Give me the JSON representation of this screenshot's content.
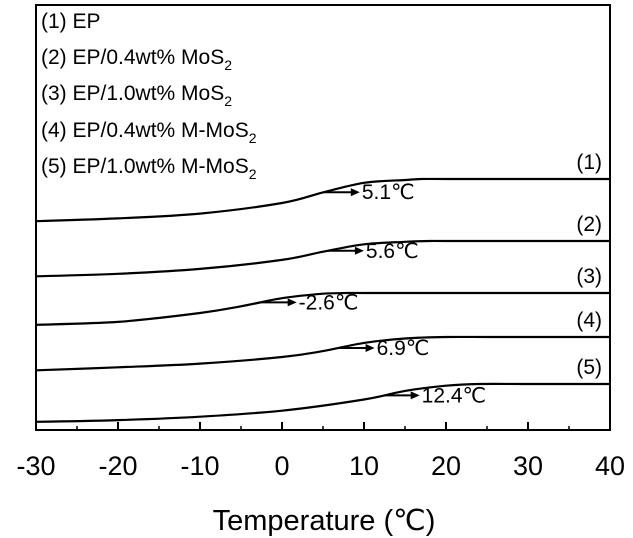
{
  "chart_data": {
    "type": "line",
    "title": "",
    "xlabel": "Temperature (℃)",
    "ylabel": "",
    "xlim": [
      -30,
      40
    ],
    "x_ticks": [
      "-30",
      "-20",
      "-10",
      "0",
      "10",
      "20",
      "30",
      "40"
    ],
    "y_ticks_shown": false,
    "grid": false,
    "legend_placement": "top-left",
    "legend": [
      {
        "main": "(1) EP",
        "sub": ""
      },
      {
        "main": "(2) EP/0.4wt% MoS",
        "sub": "2"
      },
      {
        "main": "(3) EP/1.0wt% MoS",
        "sub": "2"
      },
      {
        "main": "(4) EP/0.4wt% M-MoS",
        "sub": "2"
      },
      {
        "main": "(5) EP/1.0wt% M-MoS",
        "sub": "2"
      }
    ],
    "series": [
      {
        "name": "(1)",
        "transition": "5.1℃",
        "arrow_x": 5.1,
        "x": [
          -30,
          -20,
          -10,
          0,
          5,
          10,
          15,
          17,
          20,
          30,
          40
        ],
        "y": [
          0.56,
          0.59,
          0.64,
          0.75,
          0.86,
          0.96,
          0.99,
          1.0,
          1.0,
          1.0,
          1.0
        ]
      },
      {
        "name": "(2)",
        "transition": "5.6℃",
        "arrow_x": 5.6,
        "x": [
          -30,
          -20,
          -10,
          0,
          5,
          10,
          15,
          18,
          20,
          30,
          40
        ],
        "y": [
          0.57,
          0.6,
          0.66,
          0.77,
          0.87,
          0.96,
          0.99,
          1.0,
          1.0,
          1.0,
          1.0
        ]
      },
      {
        "name": "(3)",
        "transition": "-2.6℃",
        "arrow_x": -2.6,
        "x": [
          -30,
          -20,
          -10,
          -5,
          0,
          5,
          8,
          10,
          20,
          30,
          40
        ],
        "y": [
          0.57,
          0.61,
          0.73,
          0.82,
          0.93,
          0.99,
          1.0,
          1.0,
          1.0,
          1.0,
          1.0
        ]
      },
      {
        "name": "(4)",
        "transition": "6.9℃",
        "arrow_x": 6.9,
        "x": [
          -30,
          -20,
          -10,
          0,
          5,
          10,
          15,
          20,
          25,
          30,
          40
        ],
        "y": [
          0.55,
          0.59,
          0.64,
          0.73,
          0.81,
          0.92,
          0.98,
          1.0,
          1.0,
          1.0,
          1.0
        ]
      },
      {
        "name": "(5)",
        "transition": "12.4℃",
        "arrow_x": 12.4,
        "x": [
          -30,
          -20,
          -10,
          0,
          10,
          15,
          20,
          24,
          30,
          40
        ],
        "y": [
          0.56,
          0.58,
          0.62,
          0.69,
          0.82,
          0.92,
          0.98,
          1.0,
          1.0,
          1.0
        ]
      }
    ]
  }
}
